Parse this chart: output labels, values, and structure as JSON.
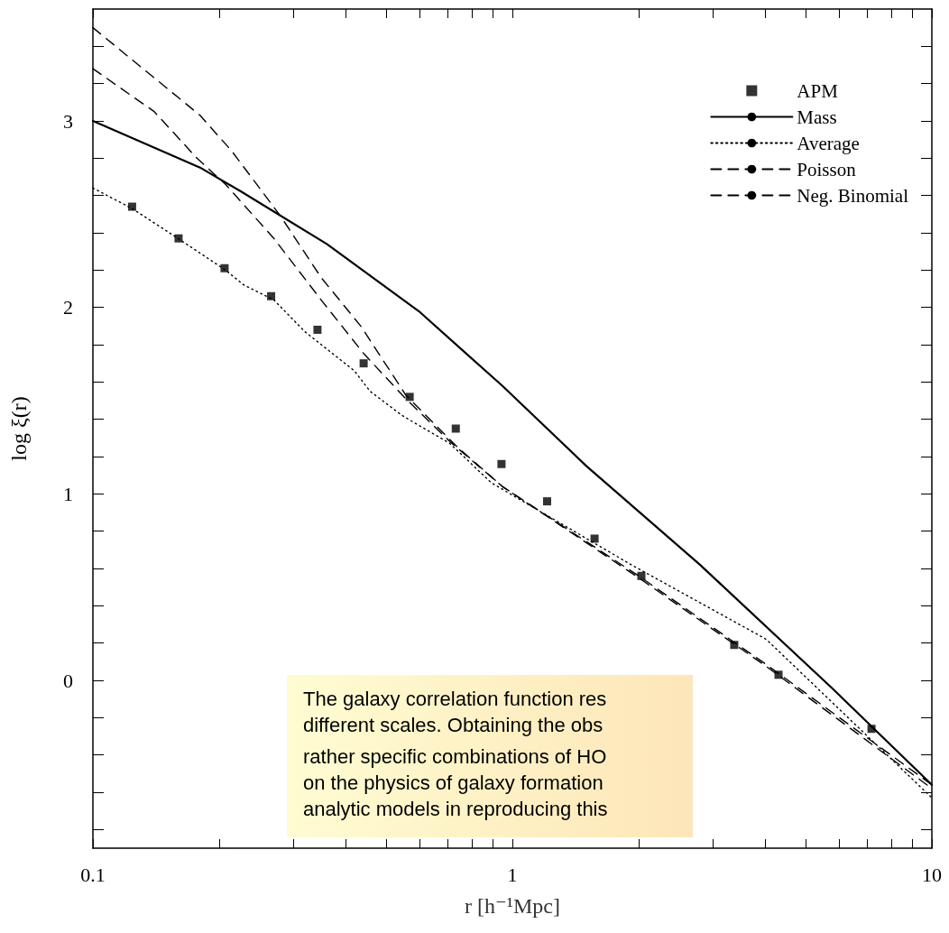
{
  "chart_data": {
    "type": "line",
    "xlabel": "r [h⁻¹Mpc]",
    "ylabel": "log ξ(r)",
    "log": "x",
    "grid": false,
    "legend": "top right",
    "xlim": [
      0.1,
      10
    ],
    "ylim": [
      -0.9,
      3.6
    ],
    "xticks": [
      0.1,
      {
        "value": 0.2,
        "label": null
      },
      {
        "value": 0.3,
        "label": null
      },
      {
        "value": 0.4,
        "label": null
      },
      {
        "value": 0.5,
        "label": null
      },
      {
        "value": 0.6,
        "label": null
      },
      {
        "value": 0.7,
        "label": null
      },
      {
        "value": 0.8,
        "label": null
      },
      {
        "value": 0.9,
        "label": null
      },
      1,
      {
        "value": 2,
        "label": null
      },
      {
        "value": 3,
        "label": null
      },
      {
        "value": 4,
        "label": null
      },
      {
        "value": 5,
        "label": null
      },
      {
        "value": 6,
        "label": null
      },
      {
        "value": 7,
        "label": null
      },
      {
        "value": 8,
        "label": null
      },
      {
        "value": 9,
        "label": null
      },
      10
    ],
    "yticks": [
      {
        "value": -0.8,
        "label": null
      },
      {
        "value": -0.6,
        "label": null
      },
      {
        "value": -0.4,
        "label": null
      },
      {
        "value": -0.2,
        "label": null
      },
      0,
      {
        "value": 0.2,
        "label": null
      },
      {
        "value": 0.4,
        "label": null
      },
      {
        "value": 0.6,
        "label": null
      },
      {
        "value": 0.8,
        "label": null
      },
      1,
      {
        "value": 1.2,
        "label": null
      },
      {
        "value": 1.4,
        "label": null
      },
      {
        "value": 1.6,
        "label": null
      },
      {
        "value": 1.8,
        "label": null
      },
      2,
      {
        "value": 2.2,
        "label": null
      },
      {
        "value": 2.4,
        "label": null
      },
      {
        "value": 2.6,
        "label": null
      },
      {
        "value": 2.8,
        "label": null
      },
      3,
      {
        "value": 3.2,
        "label": null
      },
      {
        "value": 3.4,
        "label": null
      }
    ],
    "series": [
      {
        "name": "APM",
        "type": "scatter",
        "marker": "square",
        "color": "#000000",
        "x": [
          0.124,
          0.16,
          0.206,
          0.266,
          0.343,
          0.442,
          0.569,
          0.733,
          0.942,
          1.21,
          1.57,
          2.03,
          3.38,
          4.31,
          7.18
        ],
        "values": [
          2.54,
          2.37,
          2.21,
          2.06,
          1.88,
          1.7,
          1.52,
          1.35,
          1.16,
          0.96,
          0.76,
          0.56,
          0.19,
          0.03,
          -0.26
        ]
      },
      {
        "name": "Mass",
        "line_style": "solid",
        "marker": "none",
        "color": "#000000",
        "x": [
          0.1,
          0.18,
          0.226,
          0.361,
          0.598,
          0.946,
          1.5,
          2.8,
          5.77,
          10
        ],
        "values": [
          3.0,
          2.75,
          2.62,
          2.34,
          1.98,
          1.58,
          1.15,
          0.62,
          -0.04,
          -0.56
        ]
      },
      {
        "name": "Average",
        "line_style": "dotted",
        "marker": "none",
        "color": "#000000",
        "x": [
          0.1,
          0.124,
          0.162,
          0.207,
          0.229,
          0.27,
          0.32,
          0.42,
          0.458,
          0.546,
          0.71,
          0.89,
          1.92,
          4.03,
          10
        ],
        "values": [
          2.64,
          2.53,
          2.36,
          2.2,
          2.12,
          2.04,
          1.87,
          1.66,
          1.55,
          1.42,
          1.27,
          1.06,
          0.62,
          0.22,
          -0.63
        ]
      },
      {
        "name": "Poisson",
        "line_style": "dashed",
        "marker": "none",
        "color": "#000000",
        "x": [
          0.1,
          0.14,
          0.177,
          0.207,
          0.27,
          0.35,
          0.443,
          0.557,
          0.71,
          0.946,
          2,
          4,
          10
        ],
        "values": [
          3.28,
          3.05,
          2.8,
          2.66,
          2.37,
          2.04,
          1.75,
          1.51,
          1.28,
          1.04,
          0.55,
          0.08,
          -0.58
        ]
      },
      {
        "name": "Neg. Binomial",
        "line_style": "dashed",
        "marker": "none",
        "color": "#000000",
        "x": [
          0.1,
          0.18,
          0.214,
          0.28,
          0.35,
          0.435,
          0.557,
          0.74,
          0.946,
          2,
          4,
          10
        ],
        "values": [
          3.5,
          3.03,
          2.84,
          2.49,
          2.16,
          1.9,
          1.53,
          1.25,
          1.04,
          0.56,
          0.09,
          -0.56
        ]
      }
    ],
    "annotations": [
      "The galaxy correlation function res",
      "different scales. Obtaining the obs",
      "rather specific combinations of HO",
      "on the physics of galaxy formation",
      "analytic models in reproducing this"
    ]
  }
}
